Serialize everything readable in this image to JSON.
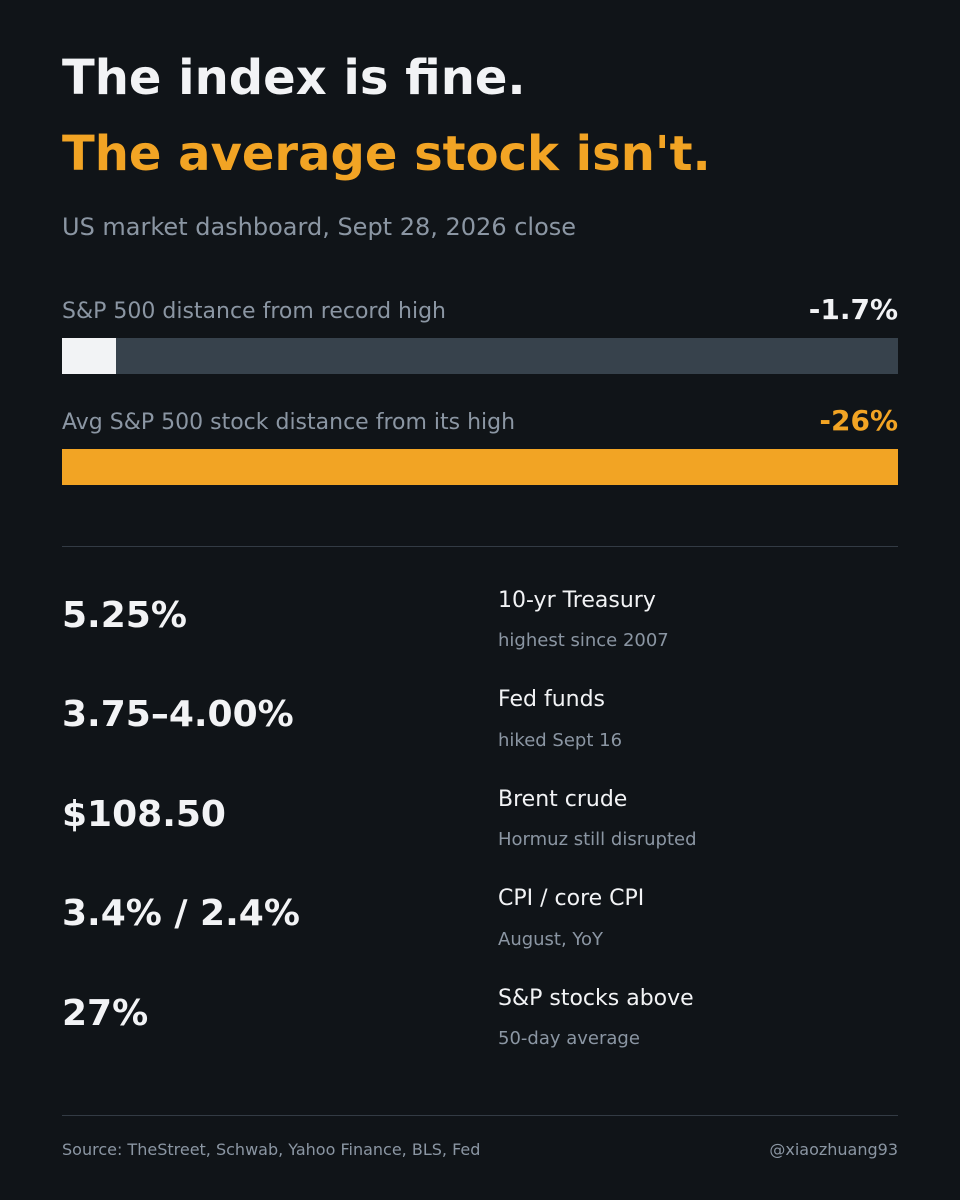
{
  "headline": {
    "line1": "The index is fine.",
    "line2": "The average stock isn't."
  },
  "subtitle": "US market dashboard, Sept 28, 2026 close",
  "bars": [
    {
      "label": "S&P 500 distance from record high",
      "value_text": "-1.7%",
      "fill_fraction": 0.065,
      "value_color": "#f2f3f5",
      "fill_color": "#f2f3f5"
    },
    {
      "label": "Avg S&P 500 stock distance from its high",
      "value_text": "-26%",
      "fill_fraction": 1.0,
      "value_color": "#f2a424",
      "fill_color": "#f2a424"
    }
  ],
  "stats": [
    {
      "value": "5.25%",
      "name": "10-yr Treasury",
      "note": "highest since 2007"
    },
    {
      "value": "3.75–4.00%",
      "name": "Fed funds",
      "note": "hiked Sept 16"
    },
    {
      "value": "$108.50",
      "name": "Brent crude",
      "note": "Hormuz still disrupted"
    },
    {
      "value": "3.4% / 2.4%",
      "name": "CPI / core CPI",
      "note": "August, YoY"
    },
    {
      "value": "27%",
      "name": "S&P stocks above",
      "note": "50-day average"
    }
  ],
  "footer": {
    "source": "Source: TheStreet, Schwab, Yahoo Finance, BLS, Fed",
    "handle": "@xiaozhuang93"
  },
  "colors": {
    "background": "#101418",
    "accent": "#f2a424",
    "text_primary": "#f2f3f5",
    "text_muted": "#8b96a3",
    "track": "#37424c"
  }
}
